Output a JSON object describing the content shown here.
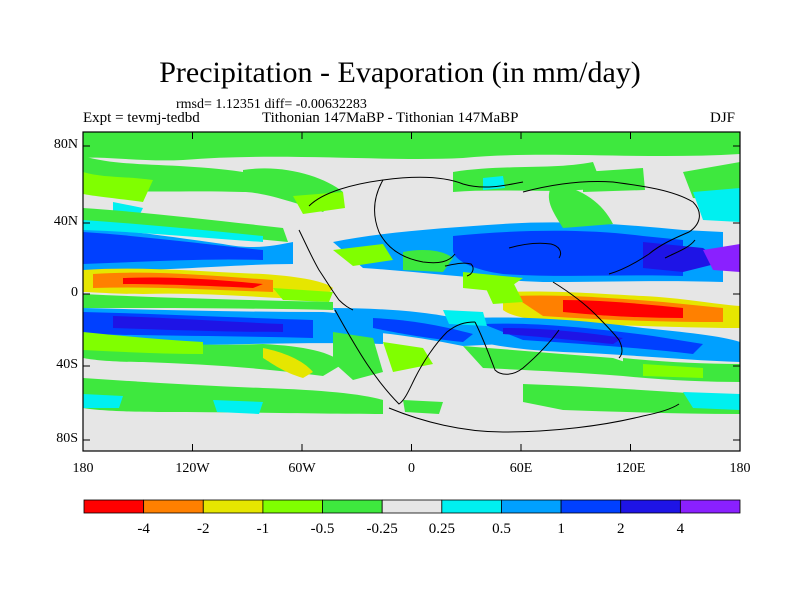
{
  "title": "Precipitation - Evaporation (in mm/day)",
  "stats": "rmsd= 1.12351 diff= -0.00632283",
  "left_label": "Expt = tevmj-tedbd",
  "center_label": "Tithonian 147MaBP - Tithonian 147MaBP",
  "right_label": "DJF",
  "map": {
    "lon_ticks": [
      "180",
      "120W",
      "60W",
      "0",
      "60E",
      "120E",
      "180"
    ],
    "lat_ticks": [
      "80N",
      "40N",
      "0",
      "40S",
      "80S"
    ]
  },
  "colorbar": {
    "labels": [
      "-4",
      "-2",
      "-1",
      "-0.5",
      "-0.25",
      "0.25",
      "0.5",
      "1",
      "2",
      "4"
    ],
    "colors": [
      "#ff0000",
      "#ff8000",
      "#e6e600",
      "#80ff00",
      "#3ee83e",
      "#e6e6e6",
      "#00f0f0",
      "#00a0ff",
      "#0040ff",
      "#1e14e6",
      "#8a20ff"
    ]
  }
}
